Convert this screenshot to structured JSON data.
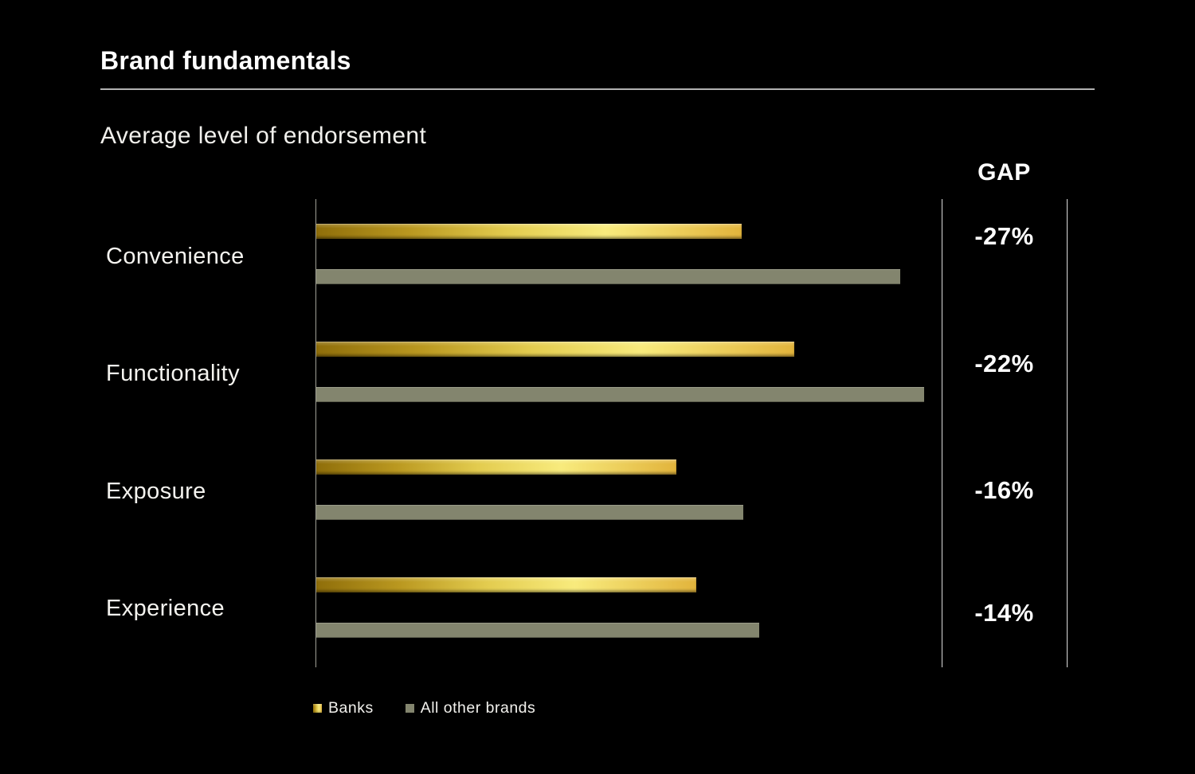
{
  "title": "Brand fundamentals",
  "subtitle": "Average level of endorsement",
  "colors": {
    "background": "#000000",
    "text": "#FFFFFF",
    "banks_gradient": [
      "#8F6E0A",
      "#BA9820",
      "#E3CC4F",
      "#F8EB7D",
      "#E2B43C"
    ],
    "other_brands": "#83856E",
    "axis_line": "#A0A096",
    "gap_column_lines": "#DCDCDC",
    "title_rule": "#B3B3B3"
  },
  "legend": {
    "items": [
      {
        "label": "Banks",
        "series": "banks"
      },
      {
        "label": "All other brands",
        "series": "others"
      }
    ]
  },
  "chart_data": {
    "type": "bar",
    "orientation": "horizontal",
    "title": "Average level of endorsement",
    "categories": [
      "Convenience",
      "Functionality",
      "Exposure",
      "Experience"
    ],
    "series": [
      {
        "name": "Banks",
        "values": [
          68.0,
          76.4,
          57.6,
          60.8
        ]
      },
      {
        "name": "All other brands",
        "values": [
          93.4,
          97.2,
          68.3,
          70.8
        ]
      }
    ],
    "values_unit": "percent of x-axis scale (axis unlabeled; bar lengths estimated from plot)",
    "gap_column": {
      "header": "GAP",
      "values": [
        "-27%",
        "-22%",
        "-16%",
        "-14%"
      ]
    },
    "xlim": [
      0,
      100
    ],
    "grid": false,
    "legend_position": "bottom-left"
  }
}
